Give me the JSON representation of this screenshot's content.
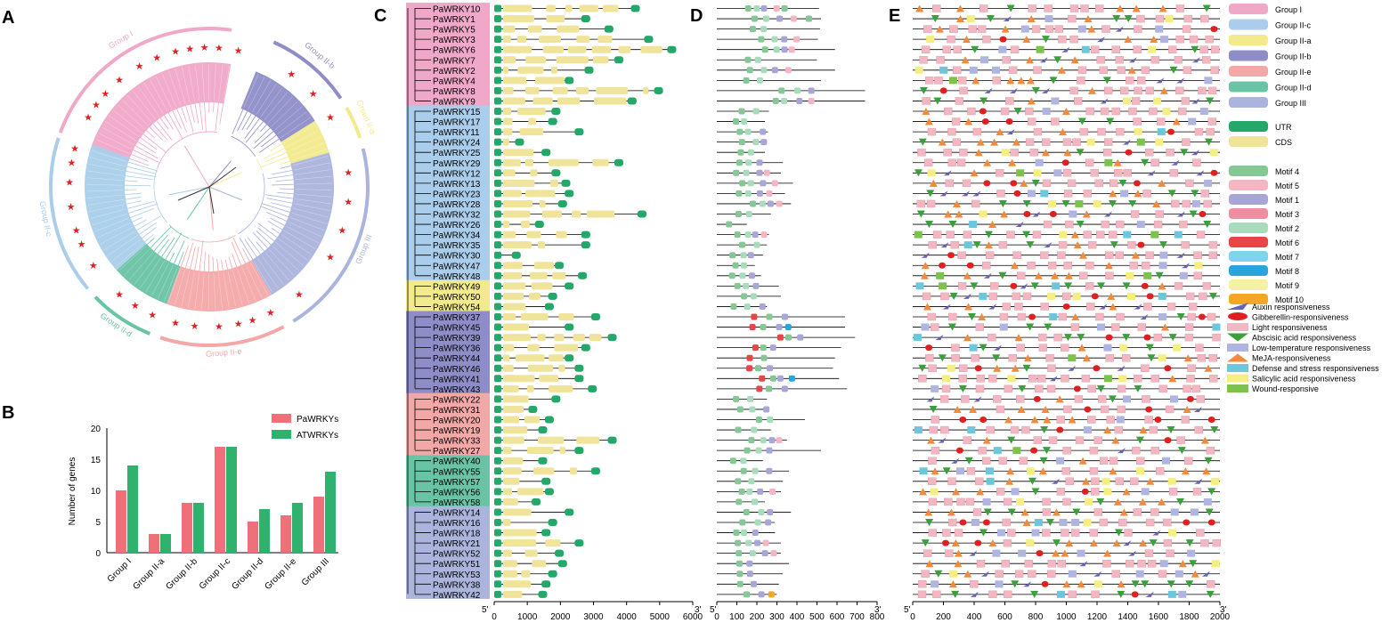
{
  "panels": {
    "a": "A",
    "b": "B",
    "c": "C",
    "d": "D",
    "e": "E"
  },
  "panel_a": {
    "arc_labels": [
      "Group I",
      "Group II-b",
      "Group II-a",
      "Group III",
      "Group II-e",
      "Group II-d",
      "Group II-c"
    ],
    "colors": {
      "group_i": "#f0a8c8",
      "group_iic": "#a9cdea",
      "group_iia": "#f2ea8c",
      "group_iib": "#8f8dc8",
      "group_iie": "#f3a8a8",
      "group_iid": "#69c3a5",
      "group_iii": "#aab4dc",
      "star": "#e02020"
    },
    "star_glyph": "★"
  },
  "panel_b": {
    "chart_data": {
      "type": "bar",
      "categories": [
        "Group I",
        "Group II-a",
        "Group II-b",
        "Group II-c",
        "Group II-d",
        "Group II-e",
        "Group III"
      ],
      "series": [
        {
          "name": "PaWRKYs",
          "color": "#f0707a",
          "values": [
            10,
            3,
            8,
            17,
            5,
            6,
            9
          ]
        },
        {
          "name": "ATWRKYs",
          "color": "#2fb26e",
          "values": [
            14,
            3,
            8,
            17,
            7,
            8,
            13
          ]
        }
      ],
      "ylabel": "Number of genes",
      "yticks": [
        "0",
        "5",
        "10",
        "15",
        "20"
      ],
      "ylim": [
        0,
        20
      ]
    }
  },
  "panel_c": {
    "genes": [
      "PaWRKY10",
      "PaWRKY1",
      "PaWRKY5",
      "PaWRKY3",
      "PaWRKY6",
      "PaWRKY7",
      "PaWRKY2",
      "PaWRKY4",
      "PaWRKY8",
      "PaWRKY9",
      "PaWRKY15",
      "PaWRKY17",
      "PaWRKY11",
      "PaWRKY24",
      "PaWRKY25",
      "PaWRKY29",
      "PaWRKY12",
      "PaWRKY13",
      "PaWRKY23",
      "PaWRKY28",
      "PaWRKY32",
      "PaWRKY26",
      "PaWRKY34",
      "PaWRKY35",
      "PaWRKY30",
      "PaWRKY47",
      "PaWRKY48",
      "PaWRKY49",
      "PaWRKY50",
      "PaWRKY54",
      "PaWRKY37",
      "PaWRKY45",
      "PaWRKY39",
      "PaWRKY36",
      "PaWRKY44",
      "PaWRKY46",
      "PaWRKY41",
      "PaWRKY43",
      "PaWRKY22",
      "PaWRKY31",
      "PaWRKY20",
      "PaWRKY19",
      "PaWRKY33",
      "PaWRKY27",
      "PaWRKY40",
      "PaWRKY55",
      "PaWRKY57",
      "PaWRKY56",
      "PaWRKY58",
      "PaWRKY14",
      "PaWRKY16",
      "PaWRKY18",
      "PaWRKY21",
      "PaWRKY52",
      "PaWRKY51",
      "PaWRKY53",
      "PaWRKY38",
      "PaWRKY42"
    ],
    "lengths": [
      4400,
      2900,
      3600,
      4800,
      5500,
      3900,
      3000,
      2400,
      5100,
      4300,
      2000,
      1900,
      2700,
      900,
      1700,
      3900,
      2000,
      2300,
      2400,
      2200,
      4600,
      1500,
      2900,
      2900,
      800,
      2100,
      2800,
      2400,
      1900,
      1800,
      3200,
      2400,
      3700,
      2900,
      2400,
      2700,
      2700,
      3100,
      2000,
      1300,
      1800,
      1600,
      3700,
      2700,
      1600,
      3200,
      1700,
      1800,
      1400,
      2400,
      1900,
      1700,
      2700,
      2100,
      2200,
      1900,
      1700,
      1600
    ],
    "axis_ticks": [
      "0",
      "1000",
      "2000",
      "3000",
      "4000",
      "5000",
      "6000"
    ],
    "five_prime": "5'",
    "three_prime": "3'",
    "utr_color": "#23a86a",
    "cds_color": "#f0e39a"
  },
  "panel_d": {
    "lengths": [
      510,
      520,
      515,
      505,
      590,
      500,
      590,
      520,
      740,
      740,
      260,
      240,
      255,
      250,
      240,
      330,
      320,
      380,
      340,
      370,
      270,
      150,
      260,
      250,
      230,
      190,
      220,
      310,
      320,
      250,
      640,
      640,
      690,
      620,
      590,
      580,
      610,
      650,
      250,
      260,
      440,
      270,
      350,
      520,
      230,
      360,
      330,
      320,
      240,
      370,
      290,
      290,
      320,
      320,
      360,
      330,
      310,
      300
    ],
    "axis_ticks": [
      "0",
      "100",
      "200",
      "300",
      "400",
      "500",
      "600",
      "700",
      "800"
    ],
    "five_prime": "5'",
    "three_prime": "3'"
  },
  "panel_e": {
    "axis_ticks": [
      "0",
      "200",
      "400",
      "600",
      "800",
      "1000",
      "1200",
      "1400",
      "1600",
      "1800",
      "2000"
    ],
    "five_prime": "5'",
    "three_prime": "3'",
    "row_count": 58
  },
  "legend_groups": [
    {
      "label": "Group I",
      "color": "#f0a8c8"
    },
    {
      "label": "Group II-c",
      "color": "#a9cdea"
    },
    {
      "label": "Group II-a",
      "color": "#f2ea8c"
    },
    {
      "label": "Group II-b",
      "color": "#8f8dc8"
    },
    {
      "label": "Group II-e",
      "color": "#f3a8a8"
    },
    {
      "label": "Group II-d",
      "color": "#69c3a5"
    },
    {
      "label": "Group III",
      "color": "#aab4dc"
    }
  ],
  "legend_structure": [
    {
      "label": "UTR",
      "color": "#23a86a"
    },
    {
      "label": "CDS",
      "color": "#f0e39a"
    }
  ],
  "legend_motifs": [
    {
      "label": "Motif 4",
      "color": "#86c796"
    },
    {
      "label": "Motif 5",
      "color": "#f5b6c3"
    },
    {
      "label": "Motif 1",
      "color": "#a7a6d6"
    },
    {
      "label": "Motif 3",
      "color": "#ef8da2"
    },
    {
      "label": "Motif 2",
      "color": "#a8dcbc"
    },
    {
      "label": "Motif 6",
      "color": "#e84646"
    },
    {
      "label": "Motif 7",
      "color": "#7fd3ea"
    },
    {
      "label": "Motif 8",
      "color": "#2aa4dc"
    },
    {
      "label": "Motif 9",
      "color": "#f4f0a4"
    },
    {
      "label": "Motif 10",
      "color": "#f5a623"
    }
  ],
  "legend_elements": [
    {
      "label": "Auxin responsiveness",
      "color": "#6a62b8",
      "shape": "flag"
    },
    {
      "label": "Gibberellin-responsiveness",
      "color": "#e02020",
      "shape": "ellipse"
    },
    {
      "label": "Light responsiveness",
      "color": "#f5b6c3",
      "shape": "rect"
    },
    {
      "label": "Abscisic acid responsiveness",
      "color": "#3aa03a",
      "shape": "down"
    },
    {
      "label": "Low-temperature responsiveness",
      "color": "#b0b4e0",
      "shape": "rect"
    },
    {
      "label": "MeJA-responsiveness",
      "color": "#f08a3c",
      "shape": "up"
    },
    {
      "label": "Defense and stress responsiveness",
      "color": "#6cc7dc",
      "shape": "rect"
    },
    {
      "label": "Salicylic acid responsiveness",
      "color": "#f5ee80",
      "shape": "rect"
    },
    {
      "label": "Wound-responsive",
      "color": "#7cc24c",
      "shape": "rect"
    }
  ]
}
